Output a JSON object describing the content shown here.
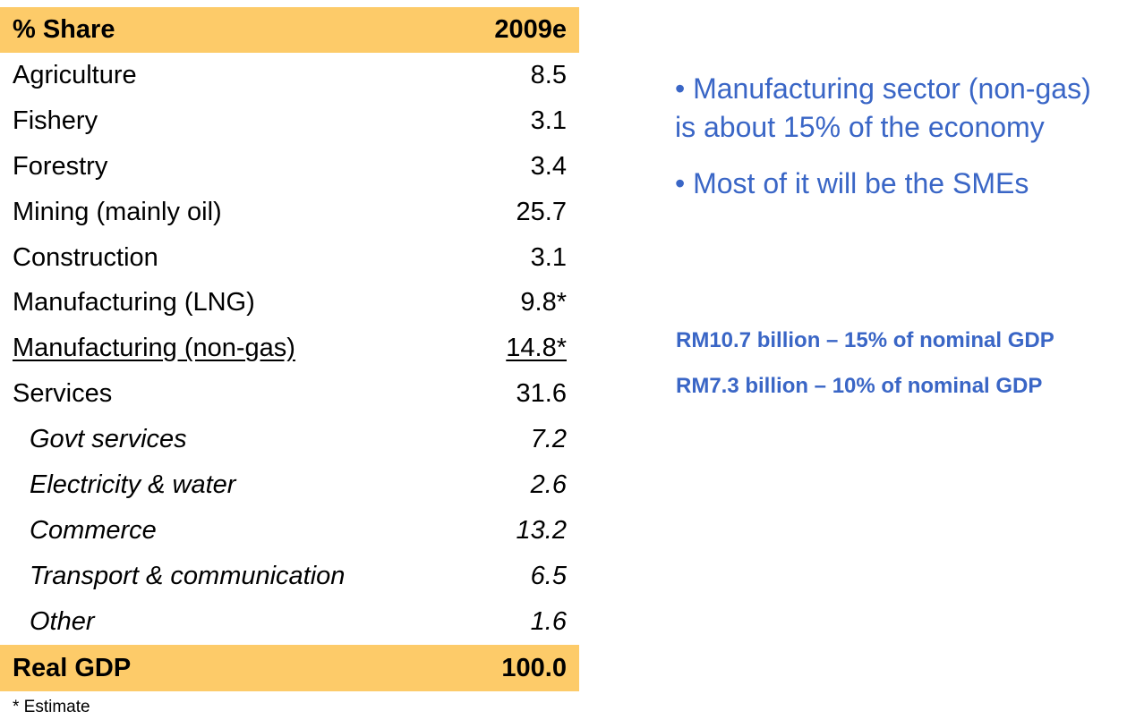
{
  "table": {
    "header": {
      "label": "% Share",
      "value": "2009e"
    },
    "rows": [
      {
        "label": "Agriculture",
        "value": "8.5"
      },
      {
        "label": "Fishery",
        "value": "3.1"
      },
      {
        "label": "Forestry",
        "value": "3.4"
      },
      {
        "label": "Mining (mainly oil)",
        "value": "25.7"
      },
      {
        "label": "Construction",
        "value": "3.1"
      },
      {
        "label": "Manufacturing (LNG)",
        "value": "9.8*"
      },
      {
        "label": "Manufacturing (non-gas)",
        "value": "14.8*"
      },
      {
        "label": "Services",
        "value": "31.6"
      },
      {
        "label": "Govt services",
        "value": "7.2"
      },
      {
        "label": "Electricity & water",
        "value": "2.6"
      },
      {
        "label": "Commerce",
        "value": "13.2"
      },
      {
        "label": "Transport & communication",
        "value": "6.5"
      },
      {
        "label": "Other",
        "value": "1.6"
      }
    ],
    "total": {
      "label": "Real GDP",
      "value": "100.0"
    },
    "footnote": "* Estimate"
  },
  "bullets": [
    "• Manufacturing sector (non-gas) is about 15% of the economy",
    "• Most of it will be the SMEs"
  ],
  "notes": [
    "RM10.7 billion – 15% of nominal GDP",
    "RM7.3 billion – 10% of nominal GDP"
  ],
  "colors": {
    "header_fill": "#fdcb69",
    "accent_text": "#3a66c6"
  }
}
